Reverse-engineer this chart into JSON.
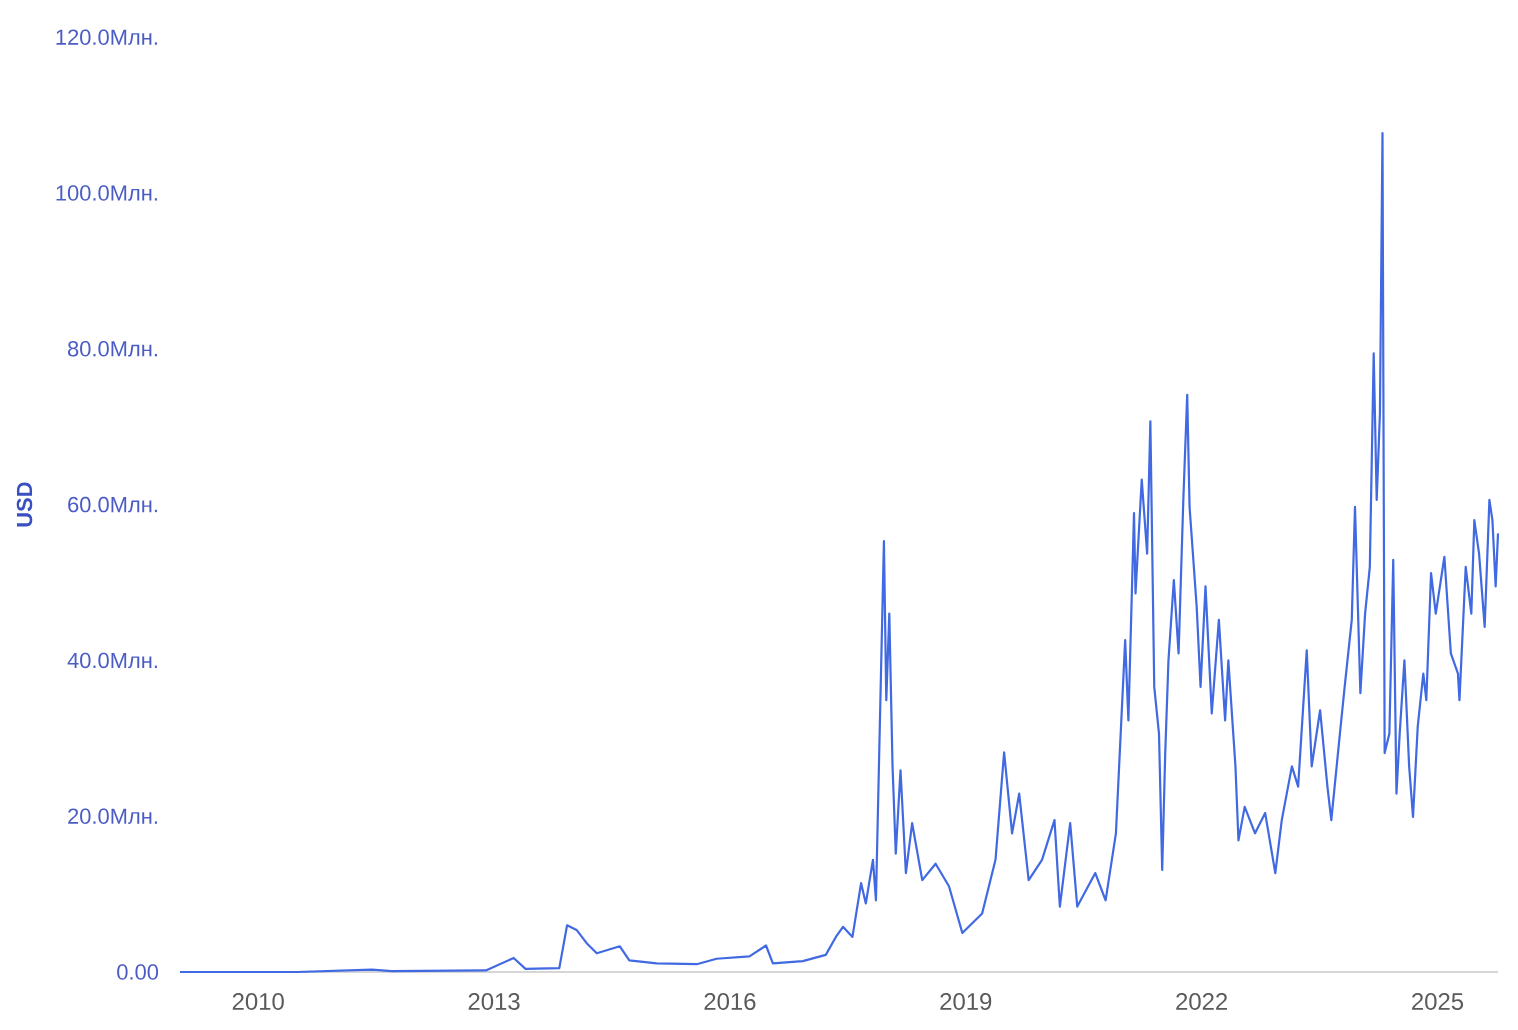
{
  "chart_data": {
    "type": "line",
    "ylabel": "USD",
    "x": [
      "2009-01-03",
      "2010-07-01",
      "2011-06-13",
      "2011-09-13",
      "2012-11-24",
      "2013-04-02",
      "2013-05-27",
      "2013-10-31",
      "2013-12-06",
      "2014-01-19",
      "2014-03-07",
      "2014-04-23",
      "2014-08-08",
      "2014-09-21",
      "2015-01-26",
      "2015-07-31",
      "2015-10-31",
      "2016-04-01",
      "2016-06-17",
      "2016-07-19",
      "2016-12-05",
      "2017-03-22",
      "2017-05-08",
      "2017-06-10",
      "2017-07-24",
      "2017-09-02",
      "2017-09-24",
      "2017-10-27",
      "2017-11-10",
      "2017-12-17",
      "2017-12-28",
      "2018-01-11",
      "2018-01-26",
      "2018-02-10",
      "2018-03-04",
      "2018-03-29",
      "2018-04-27",
      "2018-06-13",
      "2018-08-14",
      "2018-10-15",
      "2018-12-16",
      "2019-03-18",
      "2019-05-19",
      "2019-06-28",
      "2019-08-04",
      "2019-09-06",
      "2019-10-20",
      "2019-12-21",
      "2020-02-17",
      "2020-03-13",
      "2020-04-30",
      "2020-06-02",
      "2020-08-25",
      "2020-10-12",
      "2020-11-29",
      "2021-01-11",
      "2021-01-26",
      "2021-02-21",
      "2021-02-28",
      "2021-03-29",
      "2021-04-23",
      "2021-05-08",
      "2021-05-26",
      "2021-06-17",
      "2021-07-02",
      "2021-07-16",
      "2021-07-31",
      "2021-08-25",
      "2021-09-16",
      "2021-10-08",
      "2021-10-26",
      "2021-11-06",
      "2021-12-09",
      "2021-12-27",
      "2022-01-19",
      "2022-02-17",
      "2022-03-22",
      "2022-04-20",
      "2022-05-05",
      "2022-06-07",
      "2022-06-21",
      "2022-07-20",
      "2022-09-06",
      "2022-10-23",
      "2022-12-09",
      "2023-01-08",
      "2023-02-24",
      "2023-03-25",
      "2023-05-04",
      "2023-05-27",
      "2023-07-05",
      "2023-08-08",
      "2023-08-26",
      "2023-10-05",
      "2023-10-27",
      "2023-11-29",
      "2023-12-14",
      "2024-01-08",
      "2024-01-30",
      "2024-02-21",
      "2024-03-10",
      "2024-03-24",
      "2024-04-08",
      "2024-04-20",
      "2024-04-30",
      "2024-05-22",
      "2024-06-09",
      "2024-06-24",
      "2024-07-09",
      "2024-07-31",
      "2024-08-22",
      "2024-09-09",
      "2024-10-01",
      "2024-10-27",
      "2024-11-10",
      "2024-12-02",
      "2024-12-24",
      "2025-02-02",
      "2025-03-04",
      "2025-04-06",
      "2025-04-13",
      "2025-05-12",
      "2025-06-07",
      "2025-06-21",
      "2025-07-13",
      "2025-08-08",
      "2025-08-30",
      "2025-09-13",
      "2025-09-28",
      "2025-10-09"
    ],
    "series": [
      {
        "color": "#4169e1",
        "values": [
          0,
          0,
          0.3,
          0.1,
          0.2,
          1.8,
          0.4,
          0.5,
          6.0,
          5.4,
          3.7,
          2.4,
          3.3,
          1.5,
          1.1,
          1.0,
          1.7,
          2.0,
          3.4,
          1.1,
          1.4,
          2.2,
          4.5,
          5.8,
          4.5,
          11.4,
          8.8,
          14.4,
          9.2,
          55.3,
          34.9,
          46.0,
          26.4,
          15.2,
          25.9,
          12.7,
          19.1,
          11.8,
          13.9,
          11.0,
          5.0,
          7.5,
          14.4,
          28.2,
          17.8,
          22.9,
          11.8,
          14.4,
          19.5,
          8.4,
          19.1,
          8.4,
          12.7,
          9.2,
          17.8,
          42.6,
          32.3,
          58.9,
          48.6,
          63.2,
          53.7,
          70.7,
          36.6,
          30.6,
          13.1,
          28.1,
          40.0,
          50.3,
          40.9,
          60.6,
          74.1,
          59.7,
          46.9,
          36.6,
          49.5,
          33.2,
          45.2,
          32.3,
          40.0,
          26.4,
          16.9,
          21.2,
          17.8,
          20.4,
          12.7,
          19.5,
          26.4,
          23.8,
          41.3,
          26.4,
          33.6,
          23.8,
          19.5,
          30.6,
          36.6,
          45.2,
          59.7,
          35.8,
          46.0,
          52.0,
          79.4,
          60.6,
          71.7,
          107.7,
          28.1,
          30.6,
          52.9,
          22.9,
          30.6,
          40.0,
          26.4,
          19.9,
          31.5,
          38.3,
          34.9,
          51.2,
          46.0,
          53.3,
          40.9,
          38.3,
          34.9,
          52.0,
          46.0,
          58.0,
          53.7,
          44.3,
          60.6,
          58.0,
          49.5,
          56.3
        ]
      }
    ],
    "xlim": [
      "2009-01-03",
      "2025-10-09"
    ],
    "xticks": [
      "2010",
      "2013",
      "2016",
      "2019",
      "2022",
      "2025"
    ],
    "ylim": [
      0,
      120
    ],
    "yticks": [
      {
        "value": 0,
        "label": "0.00"
      },
      {
        "value": 20,
        "label": "20.0Млн."
      },
      {
        "value": 40,
        "label": "40.0Млн."
      },
      {
        "value": 60,
        "label": "60.0Млн."
      },
      {
        "value": 80,
        "label": "80.0Млн."
      },
      {
        "value": 100,
        "label": "100.0Млн."
      },
      {
        "value": 120,
        "label": "120.0Млн."
      }
    ],
    "line_style": "solid"
  }
}
